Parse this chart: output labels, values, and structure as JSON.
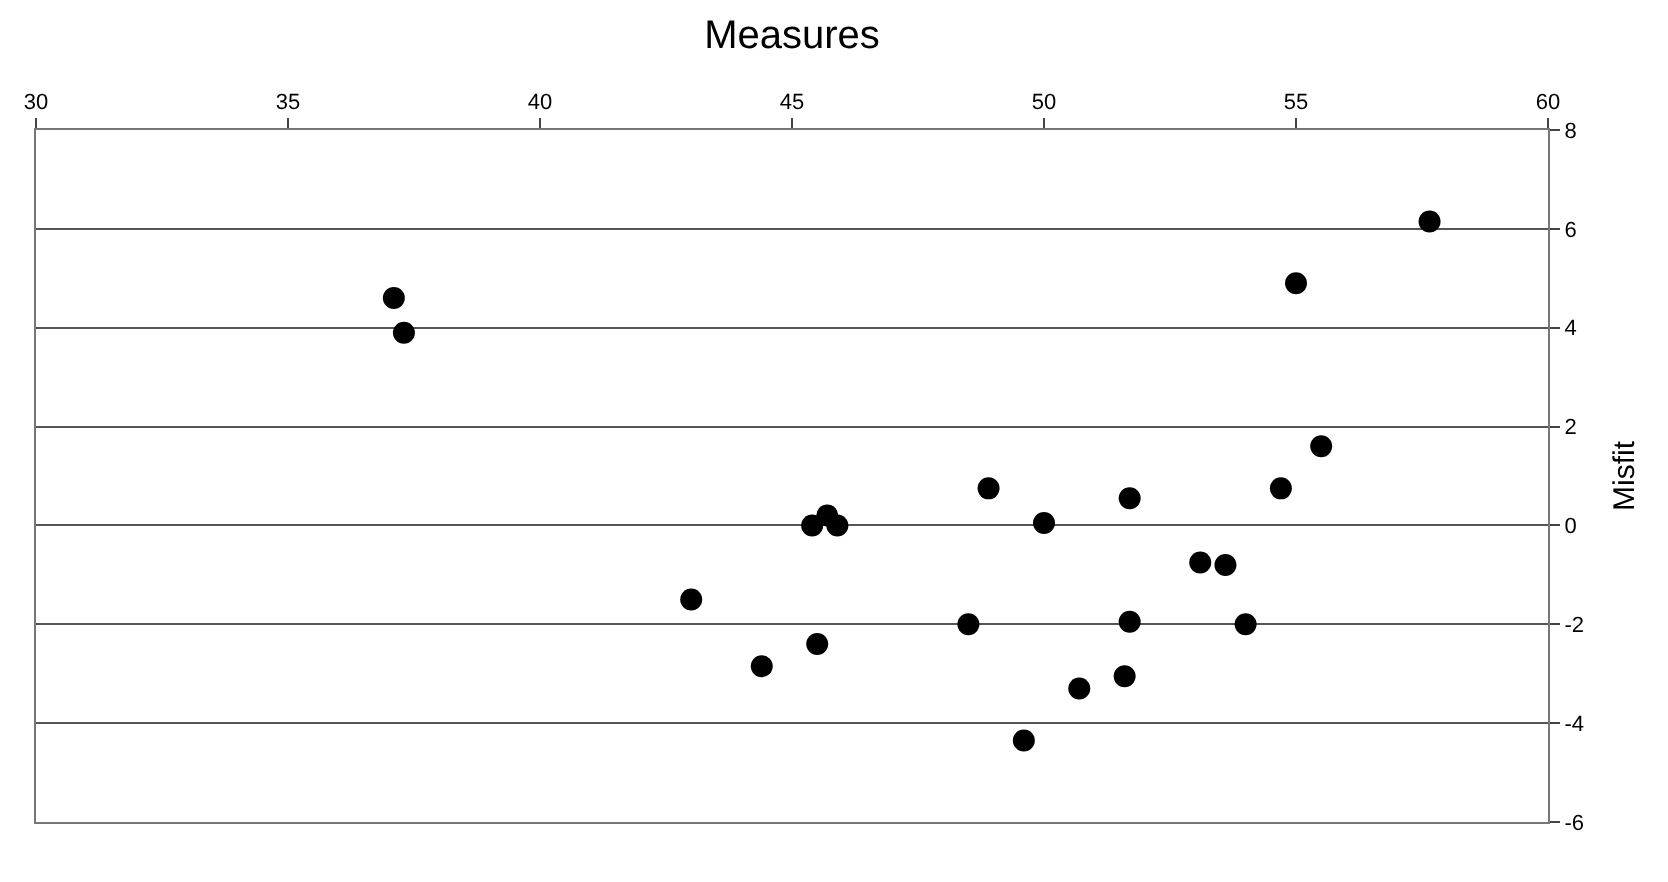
{
  "chart_data": {
    "type": "scatter",
    "xlabel": "Measures",
    "ylabel": "Misfit",
    "x": [
      37.1,
      37.3,
      43.0,
      44.4,
      45.5,
      45.4,
      45.7,
      45.9,
      48.9,
      50.0,
      48.5,
      49.6,
      50.7,
      51.6,
      51.7,
      51.7,
      53.1,
      53.6,
      54.0,
      54.7,
      55.5,
      55.0,
      57.65
    ],
    "series": [
      {
        "color": "#000000",
        "values": [
          4.6,
          3.9,
          -1.5,
          -2.85,
          -2.4,
          0.0,
          0.2,
          0.0,
          0.75,
          0.05,
          -2.0,
          -4.35,
          -3.3,
          -3.05,
          -1.95,
          0.55,
          -0.75,
          -0.8,
          -2.0,
          0.75,
          1.6,
          4.9,
          6.15
        ]
      }
    ],
    "xlim": [
      30,
      60
    ],
    "xticks": [
      30,
      35,
      40,
      45,
      50,
      55,
      60
    ],
    "ylim": [
      -6,
      8
    ],
    "yticks": [
      -6,
      -4,
      -2,
      0,
      2,
      4,
      6,
      8
    ],
    "grid": "y",
    "marker": "circle"
  }
}
